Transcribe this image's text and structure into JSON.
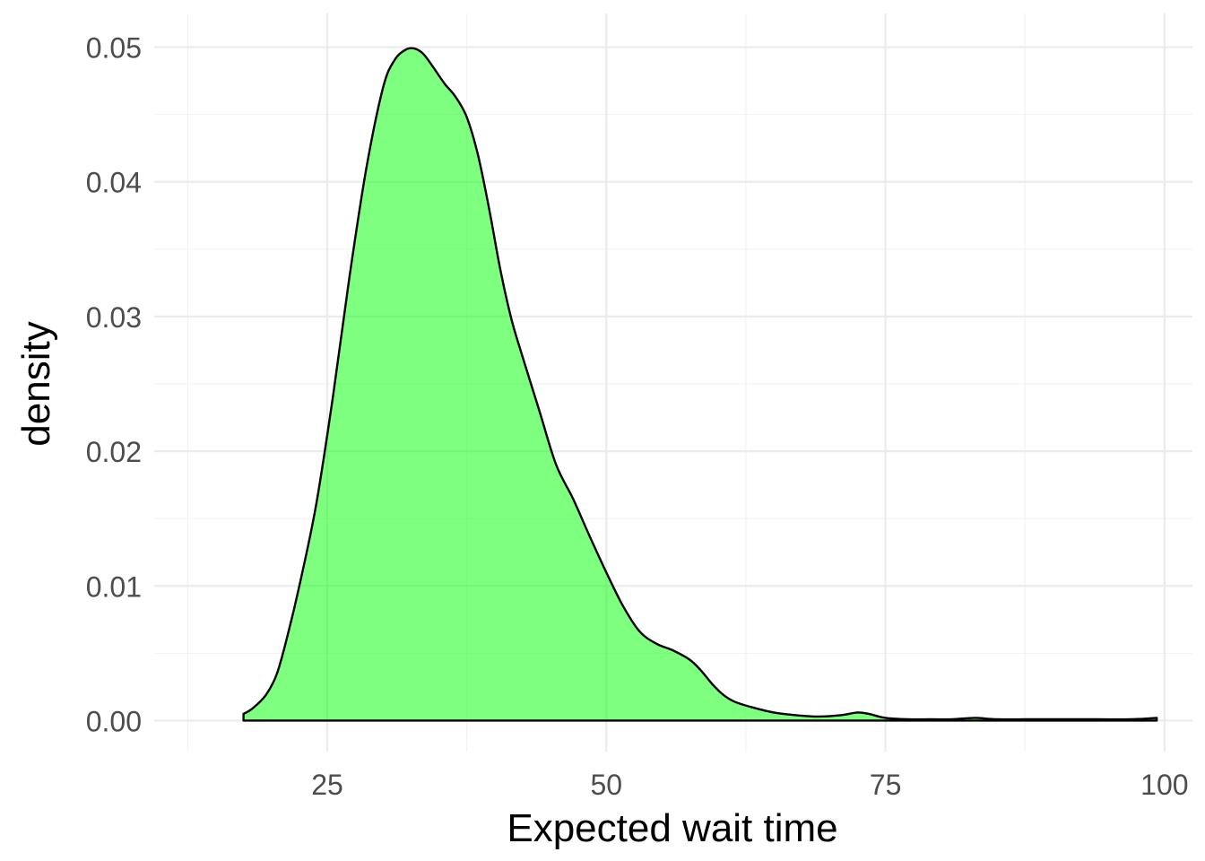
{
  "chart_data": {
    "type": "area",
    "subtype": "density",
    "xlabel": "Expected wait time",
    "ylabel": "density",
    "xlim": [
      9.5,
      102.5
    ],
    "ylim": [
      -0.0023,
      0.0525
    ],
    "x_ticks": [
      25,
      50,
      75,
      100
    ],
    "x_tick_labels": [
      "25",
      "50",
      "75",
      "100"
    ],
    "y_ticks": [
      0.0,
      0.01,
      0.02,
      0.03,
      0.04,
      0.05
    ],
    "y_tick_labels": [
      "0.00",
      "0.01",
      "0.02",
      "0.03",
      "0.04",
      "0.05"
    ],
    "x_minor_ticks": [
      12.5,
      37.5,
      62.5,
      87.5
    ],
    "y_minor_ticks": [
      0.005,
      0.015,
      0.025,
      0.035,
      0.045
    ],
    "grid": true,
    "colors": {
      "fill": "#00ff00",
      "fill_opacity": 0.5,
      "line": "#000000"
    },
    "points": {
      "x": [
        17.5,
        18.3,
        19.5,
        20.5,
        21.5,
        22.5,
        24.0,
        25.5,
        27.0,
        28.5,
        30.0,
        31.0,
        32.0,
        32.8,
        33.6,
        34.5,
        35.5,
        36.5,
        37.5,
        38.5,
        39.5,
        40.5,
        41.5,
        42.5,
        44.0,
        45.5,
        47.0,
        48.5,
        50.0,
        51.5,
        53.0,
        54.5,
        56.0,
        57.5,
        58.5,
        59.5,
        60.5,
        61.5,
        63.0,
        65.0,
        67.0,
        69.0,
        71.0,
        72.5,
        73.5,
        75.0,
        77.0,
        79.0,
        81.0,
        83.0,
        85.0,
        88.0,
        91.0,
        94.0,
        97.0,
        99.3
      ],
      "y": [
        0.0005,
        0.0009,
        0.0019,
        0.0035,
        0.0065,
        0.01,
        0.016,
        0.024,
        0.033,
        0.041,
        0.047,
        0.049,
        0.0498,
        0.0499,
        0.0495,
        0.0485,
        0.0473,
        0.0463,
        0.0448,
        0.042,
        0.038,
        0.0335,
        0.0298,
        0.027,
        0.023,
        0.019,
        0.0165,
        0.0137,
        0.011,
        0.0085,
        0.0066,
        0.0057,
        0.0052,
        0.0045,
        0.0037,
        0.0027,
        0.0019,
        0.0014,
        0.001,
        0.0006,
        0.0004,
        0.0003,
        0.0004,
        0.0006,
        0.0005,
        0.0002,
        0.0001,
        0.0001,
        0.0001,
        0.0002,
        0.0001,
        0.0001,
        0.0001,
        0.0001,
        0.0001,
        0.0002
      ]
    }
  }
}
